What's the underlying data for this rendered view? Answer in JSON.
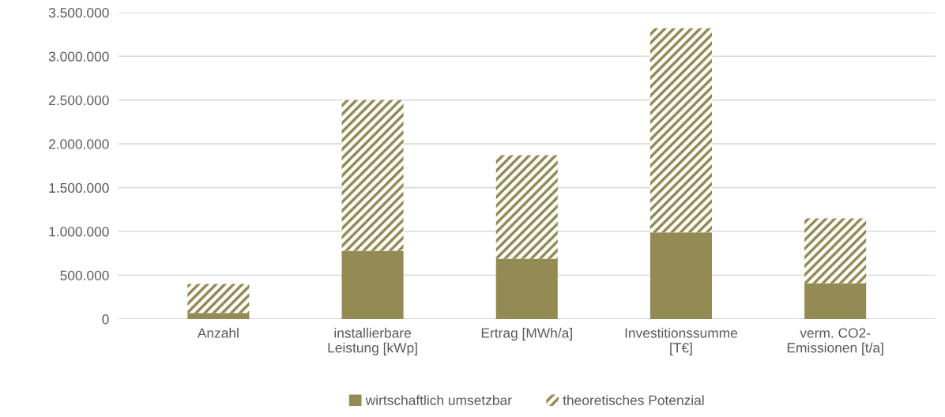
{
  "chart_data": {
    "type": "bar",
    "stacked": true,
    "categories": [
      "Anzahl",
      "installierbare\nLeistung [kWp]",
      "Ertrag [MWh/a]",
      "Investitionssumme\n[T€]",
      "verm. CO2-\nEmissionen [t/a]"
    ],
    "series": [
      {
        "name": "wirtschaftlich umsetzbar",
        "color": "#948a54",
        "values": [
          70000,
          780000,
          690000,
          990000,
          410000
        ]
      },
      {
        "name": "theoretisches Potenzial",
        "color": "#948a54",
        "values": [
          330000,
          1720000,
          1180000,
          2330000,
          740000
        ]
      }
    ],
    "ylim": [
      0,
      3500000
    ],
    "yticks": [
      {
        "value": 0,
        "label": "0"
      },
      {
        "value": 500000,
        "label": "500.000"
      },
      {
        "value": 1000000,
        "label": "1.000.000"
      },
      {
        "value": 1500000,
        "label": "1.500.000"
      },
      {
        "value": 2000000,
        "label": "2.000.000"
      },
      {
        "value": 2500000,
        "label": "2.500.000"
      },
      {
        "value": 3000000,
        "label": "3.000.000"
      },
      {
        "value": 3500000,
        "label": "3.500.000"
      }
    ],
    "grid": "y",
    "legend": "bottom"
  }
}
